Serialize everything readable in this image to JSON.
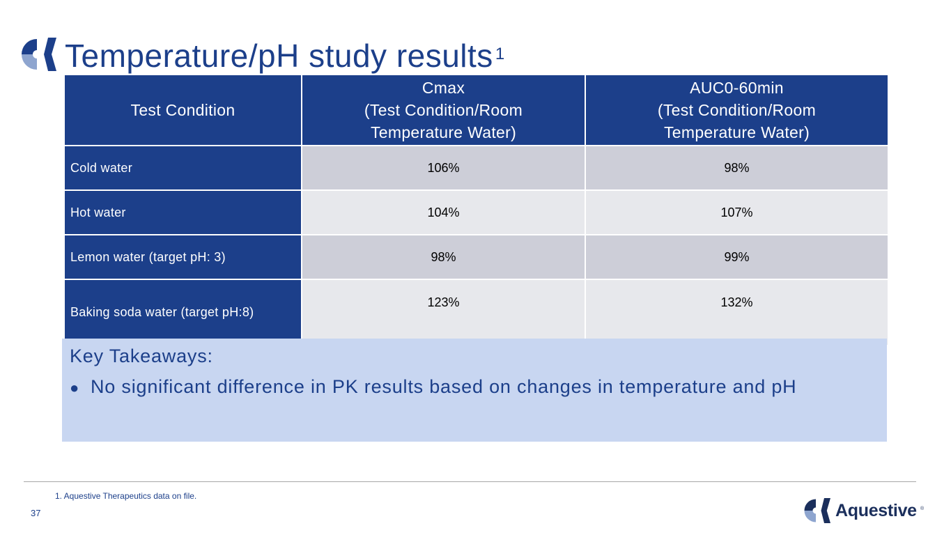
{
  "slide": {
    "title": "Temperature/pH study results",
    "title_footnote_marker": "1",
    "page_number": "37",
    "footnote": "1. Aquestive Therapeutics data on file."
  },
  "table": {
    "headers": [
      {
        "line1": "Test Condition"
      },
      {
        "line1": "Cmax",
        "line2": "(Test Condition/Room",
        "line3": "Temperature Water)"
      },
      {
        "line1": "AUC0-60min",
        "line2": "(Test Condition/Room",
        "line3": "Temperature Water)"
      }
    ],
    "rows": [
      {
        "condition": "Cold water",
        "cmax": "106%",
        "auc": "98%"
      },
      {
        "condition": "Hot water",
        "cmax": "104%",
        "auc": "107%"
      },
      {
        "condition": "Lemon water (target pH: 3)",
        "cmax": "98%",
        "auc": "99%"
      },
      {
        "condition": "Baking soda water (target pH:8)",
        "cmax": "123%",
        "auc": "132%"
      }
    ]
  },
  "takeaways": {
    "heading": "Key Takeaways:",
    "items": [
      "No significant difference in PK results based on changes in temperature and pH"
    ]
  },
  "brand": {
    "name": "Aquestive",
    "registered_mark": "®",
    "logo_icon": "aquestive-logo-icon"
  },
  "colors": {
    "primary_navy": "#1c3f8a",
    "row_dark": "#cdced8",
    "row_light": "#e7e8ec",
    "takeaway_bg": "#c8d6f1"
  }
}
